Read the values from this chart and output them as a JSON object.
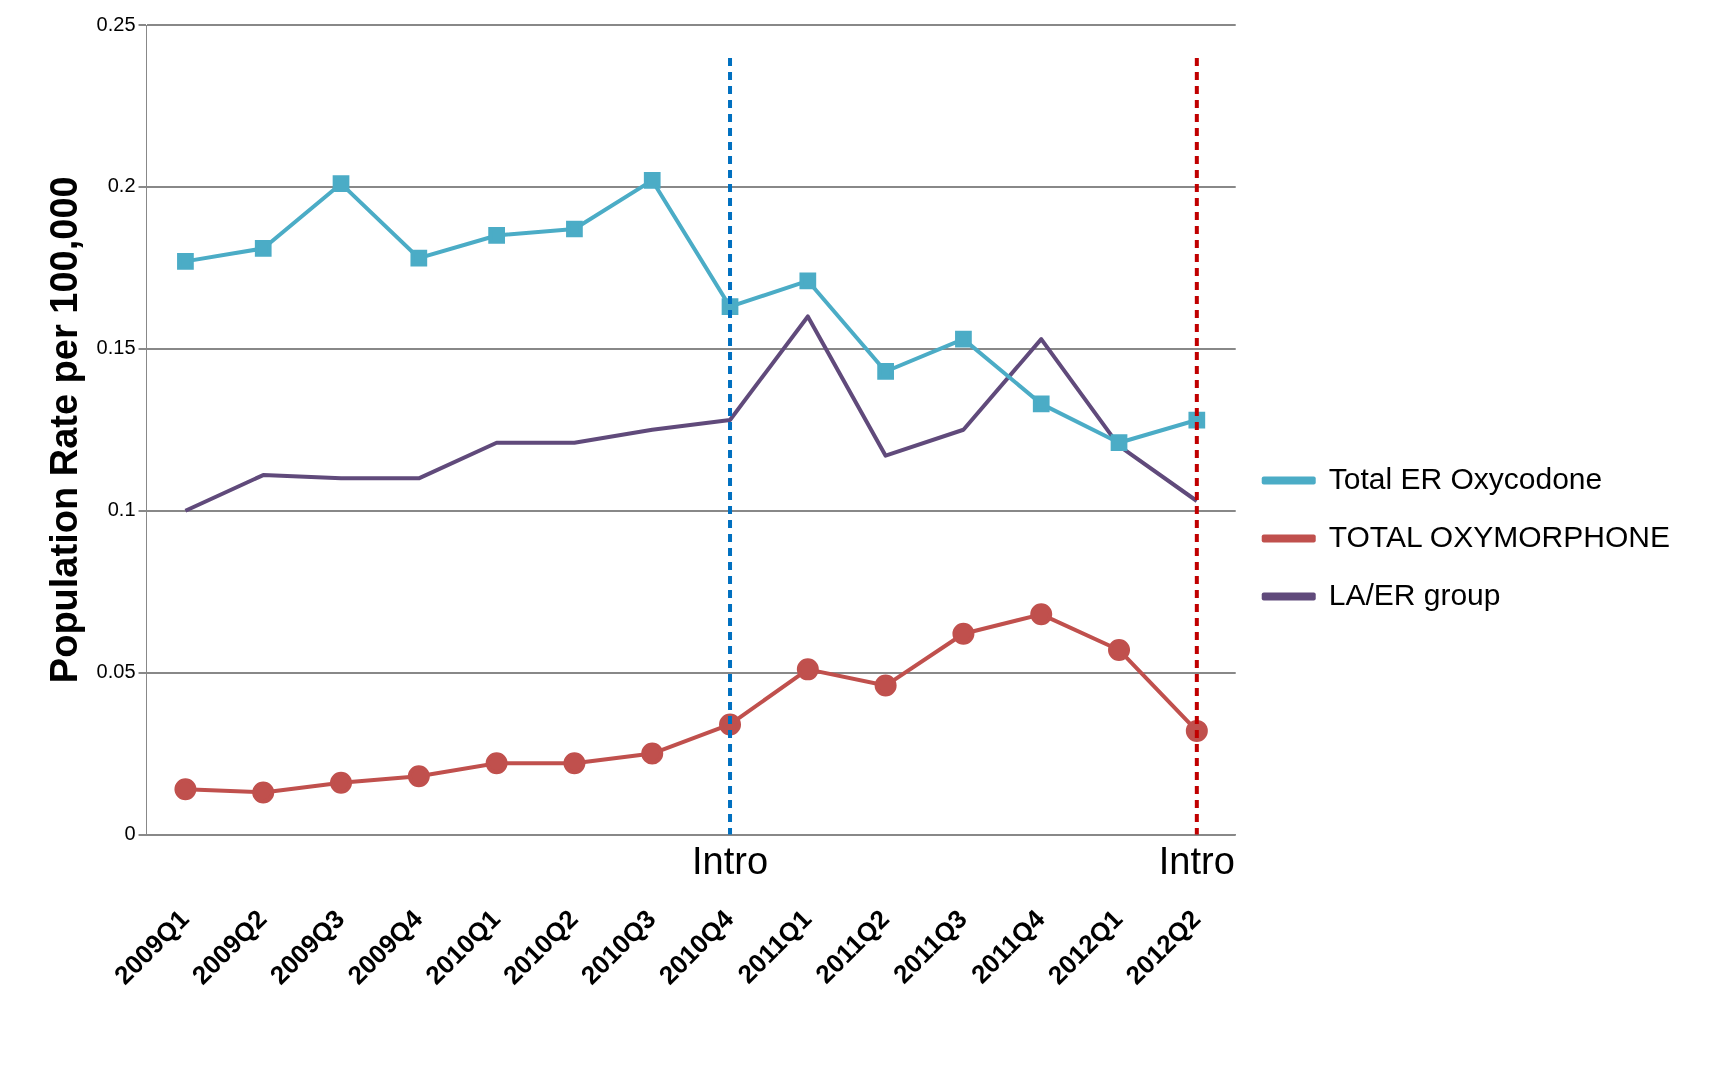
{
  "chart_data": {
    "type": "line",
    "ylabel": "Population Rate per 100,000",
    "categories": [
      "2009Q1",
      "2009Q2",
      "2009Q3",
      "2009Q4",
      "2010Q1",
      "2010Q2",
      "2010Q3",
      "2010Q4",
      "2011Q1",
      "2011Q2",
      "2011Q3",
      "2011Q4",
      "2012Q1",
      "2012Q2"
    ],
    "series": [
      {
        "name": "Total ER Oxycodone",
        "color": "#4bacc6",
        "marker": "square",
        "values": [
          0.177,
          0.181,
          0.201,
          0.178,
          0.185,
          0.187,
          0.202,
          0.163,
          0.171,
          0.143,
          0.153,
          0.133,
          0.121,
          0.128
        ]
      },
      {
        "name": "TOTAL OXYMORPHONE",
        "color": "#c0504d",
        "marker": "circle",
        "values": [
          0.014,
          0.013,
          0.016,
          0.018,
          0.022,
          0.022,
          0.025,
          0.034,
          0.051,
          0.046,
          0.062,
          0.068,
          0.057,
          0.032
        ]
      },
      {
        "name": "LA/ER group",
        "color": "#604a7b",
        "marker": "none",
        "values": [
          0.1,
          0.111,
          0.11,
          0.11,
          0.121,
          0.121,
          0.125,
          0.128,
          0.16,
          0.117,
          0.125,
          0.153,
          0.12,
          0.103
        ]
      }
    ],
    "ylim": [
      0,
      0.25
    ],
    "yticks": [
      0,
      0.05,
      0.1,
      0.15,
      0.2,
      0.25
    ],
    "ref_lines": [
      {
        "axis": "x",
        "value": "2010Q4",
        "label": "Intro",
        "color": "#0070c0",
        "line_style": "dashed"
      },
      {
        "axis": "x",
        "value": "2012Q2",
        "label": "Intro",
        "color": "#c00000",
        "line_style": "dashed"
      }
    ],
    "grid": "y",
    "legend": "right"
  }
}
